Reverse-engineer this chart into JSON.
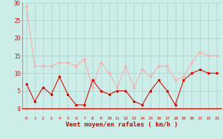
{
  "hours": [
    0,
    1,
    2,
    3,
    4,
    5,
    6,
    7,
    8,
    9,
    10,
    11,
    12,
    13,
    14,
    15,
    16,
    17,
    18,
    19,
    20,
    21,
    22,
    23
  ],
  "rafales": [
    29,
    12,
    12,
    12,
    13,
    13,
    12,
    14,
    6,
    13,
    10,
    6,
    12,
    6,
    11,
    9,
    12,
    12,
    8,
    9,
    13,
    16,
    15,
    15
  ],
  "moyen": [
    7,
    2,
    6,
    4,
    9,
    4,
    1,
    1,
    8,
    5,
    4,
    5,
    5,
    2,
    1,
    5,
    8,
    5,
    1,
    8,
    10,
    11,
    10,
    10
  ],
  "color_rafales": "#ffaaaa",
  "color_moyen": "#dd0000",
  "bg_color": "#cceee8",
  "grid_color": "#aacccc",
  "xlabel": "Vent moyen/en rafales ( km/h )",
  "xlabel_color": "#dd0000",
  "tick_color": "#dd0000",
  "ylim": [
    0,
    30
  ],
  "yticks": [
    0,
    5,
    10,
    15,
    20,
    25,
    30
  ],
  "markersize": 2.0,
  "linewidth": 0.8
}
